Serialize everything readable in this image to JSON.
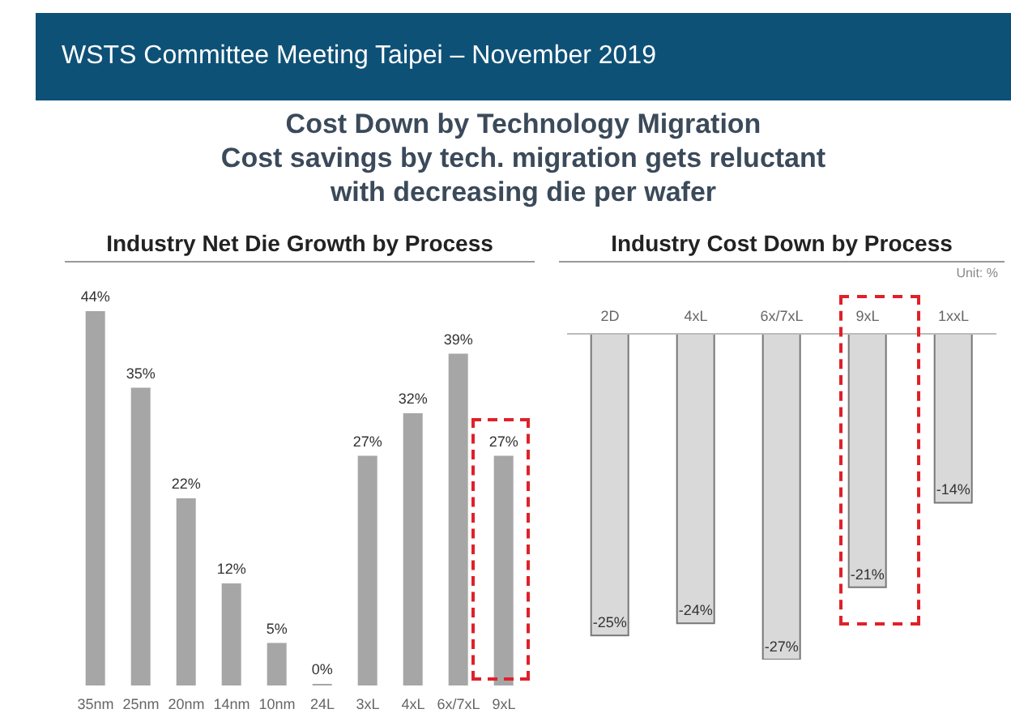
{
  "chart_data": [
    {
      "type": "bar",
      "title": "Industry Net Die Growth by Process",
      "annotations": [
        "WSTS Committee Meeting Taipei – November 2019",
        "Cost Down by Technology Migration",
        "Cost savings by tech. migration gets reluctant",
        "with decreasing die per wafer"
      ],
      "categories": [
        "35nm",
        "25nm",
        "20nm",
        "14nm",
        "10nm",
        "24L",
        "3xL",
        "4xL",
        "6x/7xL",
        "9xL"
      ],
      "values": [
        44,
        35,
        22,
        12,
        5,
        0,
        27,
        32,
        39,
        27
      ],
      "value_labels": [
        "44%",
        "35%",
        "22%",
        "12%",
        "5%",
        "0%",
        "27%",
        "32%",
        "39%",
        "27%"
      ],
      "color": "#a6a6a6"
    },
    {
      "type": "bar",
      "title": "Industry Cost Down by Process",
      "annotations": [
        "Unit: %"
      ],
      "categories": [
        "2D",
        "4xL",
        "6x/7xL",
        "9xL",
        "1xxL"
      ],
      "values": [
        -25,
        -24,
        -27,
        -21,
        -14
      ],
      "value_labels": [
        "-25%",
        "-24%",
        "-27%",
        "-21%",
        "-14%"
      ],
      "color": "#d9d9d9"
    }
  ]
}
